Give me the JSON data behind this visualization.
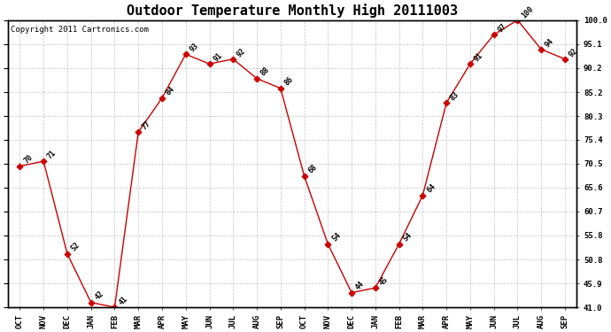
{
  "title": "Outdoor Temperature Monthly High 20111003",
  "copyright": "Copyright 2011 Cartronics.com",
  "months": [
    "OCT",
    "NOV",
    "DEC",
    "JAN",
    "FEB",
    "MAR",
    "APR",
    "MAY",
    "JUN",
    "JUL",
    "AUG",
    "SEP",
    "OCT",
    "NOV",
    "DEC",
    "JAN",
    "FEB",
    "MAR",
    "APR",
    "MAY",
    "JUN",
    "JUL",
    "AUG",
    "SEP"
  ],
  "values": [
    70,
    71,
    52,
    42,
    41,
    77,
    84,
    93,
    91,
    92,
    88,
    86,
    68,
    54,
    44,
    45,
    54,
    64,
    83,
    91,
    97,
    100,
    94,
    92
  ],
  "ylim": [
    41.0,
    100.0
  ],
  "yticks": [
    41.0,
    45.9,
    50.8,
    55.8,
    60.7,
    65.6,
    70.5,
    75.4,
    80.3,
    85.2,
    90.2,
    95.1,
    100.0
  ],
  "ytick_labels": [
    "41.0",
    "45.9",
    "50.8",
    "55.8",
    "60.7",
    "65.6",
    "70.5",
    "75.4",
    "80.3",
    "85.2",
    "90.2",
    "95.1",
    "100.0"
  ],
  "line_color": "#cc0000",
  "marker_color": "#cc0000",
  "grid_color": "#aaaaaa",
  "bg_color": "#ffffff",
  "title_fontsize": 11,
  "copyright_fontsize": 6.5,
  "label_fontsize": 6,
  "tick_fontsize": 6.5
}
